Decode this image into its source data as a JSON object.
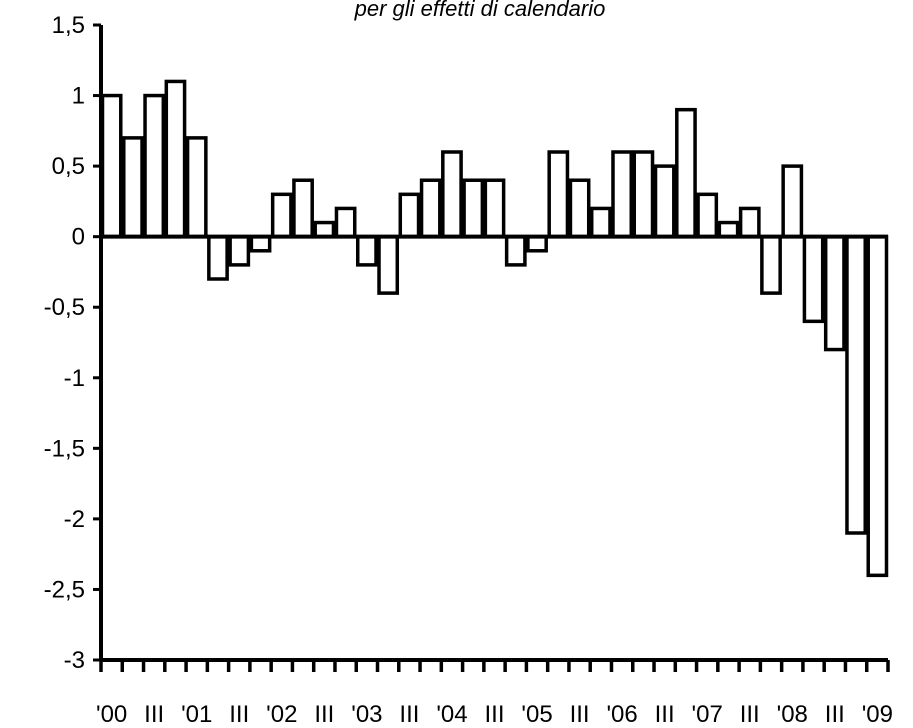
{
  "chart_data": {
    "type": "bar",
    "subtitle": "per gli effetti di calendario",
    "xlabel": "",
    "ylabel": "",
    "ylim": [
      -3,
      1.5
    ],
    "y_ticks": [
      "1,5",
      "1",
      "0,5",
      "0",
      "-0,5",
      "-1",
      "-1,5",
      "-2",
      "-2,5",
      "-3"
    ],
    "y_tick_values": [
      1.5,
      1,
      0.5,
      0,
      -0.5,
      -1,
      -1.5,
      -2,
      -2.5,
      -3
    ],
    "x_tick_labels": [
      "'00",
      "III",
      "'01",
      "III",
      "'02",
      "III",
      "'03",
      "III",
      "'04",
      "III",
      "'05",
      "III",
      "'06",
      "III",
      "'07",
      "III",
      "'08",
      "III",
      "'09"
    ],
    "x_tick_label_index": [
      0,
      2,
      4,
      6,
      8,
      10,
      12,
      14,
      16,
      18,
      20,
      22,
      24,
      26,
      28,
      30,
      32,
      34,
      36
    ],
    "grid": false,
    "categories": [
      "2000 Q1",
      "2000 Q2",
      "2000 Q3",
      "2000 Q4",
      "2001 Q1",
      "2001 Q2",
      "2001 Q3",
      "2001 Q4",
      "2002 Q1",
      "2002 Q2",
      "2002 Q3",
      "2002 Q4",
      "2003 Q1",
      "2003 Q2",
      "2003 Q3",
      "2003 Q4",
      "2004 Q1",
      "2004 Q2",
      "2004 Q3",
      "2004 Q4",
      "2005 Q1",
      "2005 Q2",
      "2005 Q3",
      "2005 Q4",
      "2006 Q1",
      "2006 Q2",
      "2006 Q3",
      "2006 Q4",
      "2007 Q1",
      "2007 Q2",
      "2007 Q3",
      "2007 Q4",
      "2008 Q1",
      "2008 Q2",
      "2008 Q3",
      "2008 Q4",
      "2009 Q1"
    ],
    "values": [
      1.0,
      0.7,
      1.0,
      1.1,
      0.7,
      -0.3,
      -0.2,
      -0.1,
      0.3,
      0.4,
      0.1,
      0.2,
      -0.2,
      -0.4,
      0.3,
      0.4,
      0.6,
      0.4,
      0.4,
      -0.2,
      -0.1,
      0.6,
      0.4,
      0.2,
      0.6,
      0.6,
      0.5,
      0.9,
      0.3,
      0.1,
      0.2,
      -0.4,
      0.5,
      -0.6,
      -0.8,
      -2.1,
      -2.4
    ],
    "bar_fill": "#ffffff",
    "bar_stroke": "#000000"
  }
}
